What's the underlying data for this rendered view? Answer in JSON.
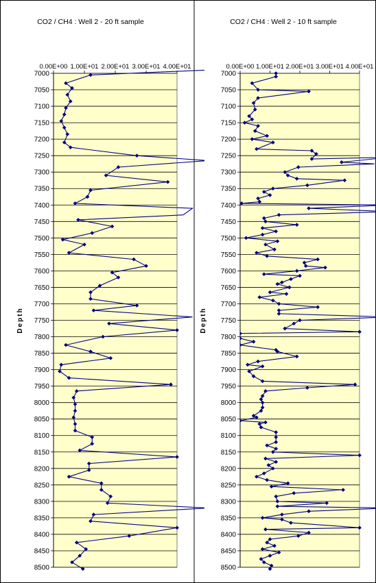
{
  "chart_data": [
    {
      "type": "line",
      "title": "CO2 / CH4 : Well 2 - 20  ft sample",
      "ylabel": "Depth",
      "xlabel": "",
      "xlim": [
        0,
        40
      ],
      "ylim": [
        7000,
        8500
      ],
      "x_ticks": [
        "0.00E+00",
        "1.00E+01",
        "2.00E+01",
        "3.00E+01",
        "4.00E+01"
      ],
      "y_ticks": [
        "7000",
        "7050",
        "7100",
        "7150",
        "7200",
        "7250",
        "7300",
        "7350",
        "7400",
        "7450",
        "7500",
        "7550",
        "7600",
        "7650",
        "7700",
        "7750",
        "7800",
        "7850",
        "7900",
        "7950",
        "8000",
        "8050",
        "8100",
        "8150",
        "8200",
        "8250",
        "8300",
        "8350",
        "8400",
        "8450",
        "8500"
      ],
      "plot_background": "#ffffcc",
      "line_color": "#000080",
      "grid": "horizontal",
      "series": [
        {
          "points": [
            {
              "x": 50,
              "y": 6990
            },
            {
              "x": 12,
              "y": 7005
            },
            {
              "x": 4,
              "y": 7030
            },
            {
              "x": 6,
              "y": 7045
            },
            {
              "x": 4.5,
              "y": 7065
            },
            {
              "x": 5.5,
              "y": 7085
            },
            {
              "x": 4,
              "y": 7105
            },
            {
              "x": 3.5,
              "y": 7125
            },
            {
              "x": 2.5,
              "y": 7145
            },
            {
              "x": 3.5,
              "y": 7165
            },
            {
              "x": 4.5,
              "y": 7185
            },
            {
              "x": 3.5,
              "y": 7210
            },
            {
              "x": 5.5,
              "y": 7225
            },
            {
              "x": 27,
              "y": 7250
            },
            {
              "x": 55,
              "y": 7265
            },
            {
              "x": 21,
              "y": 7285
            },
            {
              "x": 17,
              "y": 7310
            },
            {
              "x": 37,
              "y": 7330
            },
            {
              "x": 12,
              "y": 7355
            },
            {
              "x": 11,
              "y": 7375
            },
            {
              "x": 7,
              "y": 7395
            },
            {
              "x": 45,
              "y": 7410
            },
            {
              "x": 42,
              "y": 7430
            },
            {
              "x": 8,
              "y": 7445
            },
            {
              "x": 19,
              "y": 7465
            },
            {
              "x": 12.5,
              "y": 7485
            },
            {
              "x": 3,
              "y": 7505
            },
            {
              "x": 10,
              "y": 7520
            },
            {
              "x": 5,
              "y": 7545
            },
            {
              "x": 26,
              "y": 7565
            },
            {
              "x": 30,
              "y": 7585
            },
            {
              "x": 19,
              "y": 7605
            },
            {
              "x": 21,
              "y": 7620
            },
            {
              "x": 15,
              "y": 7645
            },
            {
              "x": 12,
              "y": 7665
            },
            {
              "x": 12,
              "y": 7685
            },
            {
              "x": 27,
              "y": 7705
            },
            {
              "x": 13,
              "y": 7720
            },
            {
              "x": 45,
              "y": 7740
            },
            {
              "x": 18,
              "y": 7760
            },
            {
              "x": 40,
              "y": 7780
            },
            {
              "x": 16,
              "y": 7800
            },
            {
              "x": 4,
              "y": 7825
            },
            {
              "x": 12,
              "y": 7845
            },
            {
              "x": 18.5,
              "y": 7865
            },
            {
              "x": 2.5,
              "y": 7885
            },
            {
              "x": 2,
              "y": 7905
            },
            {
              "x": 5,
              "y": 7925
            },
            {
              "x": 38,
              "y": 7945
            },
            {
              "x": 7.5,
              "y": 7965
            },
            {
              "x": 6.5,
              "y": 7985
            },
            {
              "x": 7,
              "y": 8005
            },
            {
              "x": 7,
              "y": 8025
            },
            {
              "x": 6.5,
              "y": 8045
            },
            {
              "x": 7,
              "y": 8065
            },
            {
              "x": 7,
              "y": 8085
            },
            {
              "x": 12.5,
              "y": 8105
            },
            {
              "x": 12.5,
              "y": 8125
            },
            {
              "x": 8.5,
              "y": 8145
            },
            {
              "x": 40,
              "y": 8165
            },
            {
              "x": 11.5,
              "y": 8185
            },
            {
              "x": 11.5,
              "y": 8205
            },
            {
              "x": 5,
              "y": 8225
            },
            {
              "x": 15.5,
              "y": 8245
            },
            {
              "x": 15.5,
              "y": 8265
            },
            {
              "x": 18.5,
              "y": 8285
            },
            {
              "x": 17.5,
              "y": 8305
            },
            {
              "x": 55,
              "y": 8320
            },
            {
              "x": 13,
              "y": 8340
            },
            {
              "x": 12,
              "y": 8360
            },
            {
              "x": 40,
              "y": 8380
            },
            {
              "x": 24.5,
              "y": 8405
            },
            {
              "x": 7.5,
              "y": 8425
            },
            {
              "x": 10.5,
              "y": 8445
            },
            {
              "x": 8.5,
              "y": 8465
            },
            {
              "x": 6,
              "y": 8485
            },
            {
              "x": 9.5,
              "y": 8505
            }
          ]
        }
      ]
    },
    {
      "type": "line",
      "title": "CO2 / CH4 : Well 2 - 10  ft sample",
      "ylabel": "Depth",
      "xlabel": "",
      "xlim": [
        0,
        40
      ],
      "ylim": [
        7000,
        8500
      ],
      "x_ticks": [
        "0.00E+00",
        "1.00E+01",
        "2.00E+01",
        "3.00E+01",
        "4.00E+01"
      ],
      "y_ticks": [
        "7000",
        "7050",
        "7100",
        "7150",
        "7200",
        "7250",
        "7300",
        "7350",
        "7400",
        "7450",
        "7500",
        "7550",
        "7600",
        "7650",
        "7700",
        "7750",
        "7800",
        "7850",
        "7900",
        "7950",
        "8000",
        "8050",
        "8100",
        "8150",
        "8200",
        "8250",
        "8300",
        "8350",
        "8400",
        "8450",
        "8500"
      ],
      "plot_background": "#ffffcc",
      "line_color": "#000080",
      "grid": "horizontal",
      "series": [
        {
          "points": [
            {
              "x": 12,
              "y": 7000
            },
            {
              "x": 12,
              "y": 7010
            },
            {
              "x": 4,
              "y": 7030
            },
            {
              "x": 6,
              "y": 7050
            },
            {
              "x": 23,
              "y": 7055
            },
            {
              "x": 6,
              "y": 7075
            },
            {
              "x": 4.5,
              "y": 7090
            },
            {
              "x": 5,
              "y": 7110
            },
            {
              "x": 3,
              "y": 7130
            },
            {
              "x": 4,
              "y": 7140
            },
            {
              "x": 1.5,
              "y": 7150
            },
            {
              "x": 6,
              "y": 7160
            },
            {
              "x": 5,
              "y": 7175
            },
            {
              "x": 9,
              "y": 7190
            },
            {
              "x": 4,
              "y": 7200
            },
            {
              "x": 11,
              "y": 7210
            },
            {
              "x": 5.5,
              "y": 7230
            },
            {
              "x": 24,
              "y": 7235
            },
            {
              "x": 25.5,
              "y": 7245
            },
            {
              "x": 24,
              "y": 7260
            },
            {
              "x": 50,
              "y": 7255
            },
            {
              "x": 34,
              "y": 7270
            },
            {
              "x": 45,
              "y": 7275
            },
            {
              "x": 19.5,
              "y": 7285
            },
            {
              "x": 15,
              "y": 7300
            },
            {
              "x": 16,
              "y": 7310
            },
            {
              "x": 19,
              "y": 7320
            },
            {
              "x": 35,
              "y": 7325
            },
            {
              "x": 22.5,
              "y": 7340
            },
            {
              "x": 11,
              "y": 7350
            },
            {
              "x": 8,
              "y": 7360
            },
            {
              "x": 10,
              "y": 7370
            },
            {
              "x": 6,
              "y": 7380
            },
            {
              "x": 6.5,
              "y": 7390
            },
            {
              "x": 0.5,
              "y": 7395
            },
            {
              "x": 50,
              "y": 7400
            },
            {
              "x": 23,
              "y": 7410
            },
            {
              "x": 50,
              "y": 7420
            },
            {
              "x": 13,
              "y": 7430
            },
            {
              "x": 8,
              "y": 7440
            },
            {
              "x": 8.5,
              "y": 7450
            },
            {
              "x": 19,
              "y": 7460
            },
            {
              "x": 7.5,
              "y": 7470
            },
            {
              "x": 12,
              "y": 7480
            },
            {
              "x": 7.5,
              "y": 7490
            },
            {
              "x": 2,
              "y": 7500
            },
            {
              "x": 12.5,
              "y": 7510
            },
            {
              "x": 8.5,
              "y": 7520
            },
            {
              "x": 11.5,
              "y": 7535
            },
            {
              "x": 5.5,
              "y": 7545
            },
            {
              "x": 9,
              "y": 7555
            },
            {
              "x": 26,
              "y": 7565
            },
            {
              "x": 21.5,
              "y": 7575
            },
            {
              "x": 22,
              "y": 7585
            },
            {
              "x": 28.5,
              "y": 7590
            },
            {
              "x": 19,
              "y": 7600
            },
            {
              "x": 8,
              "y": 7610
            },
            {
              "x": 20,
              "y": 7615
            },
            {
              "x": 17,
              "y": 7625
            },
            {
              "x": 14,
              "y": 7635
            },
            {
              "x": 12.5,
              "y": 7640
            },
            {
              "x": 16.5,
              "y": 7650
            },
            {
              "x": 10,
              "y": 7665
            },
            {
              "x": 15.5,
              "y": 7670
            },
            {
              "x": 6.5,
              "y": 7680
            },
            {
              "x": 11,
              "y": 7690
            },
            {
              "x": 13,
              "y": 7700
            },
            {
              "x": 26,
              "y": 7710
            },
            {
              "x": 13,
              "y": 7720
            },
            {
              "x": 13,
              "y": 7730
            },
            {
              "x": 50,
              "y": 7740
            },
            {
              "x": 20,
              "y": 7750
            },
            {
              "x": 18,
              "y": 7760
            },
            {
              "x": 15,
              "y": 7775
            },
            {
              "x": 40,
              "y": 7785
            },
            {
              "x": 0,
              "y": 7790
            },
            {
              "x": 0,
              "y": 7805
            },
            {
              "x": 4.5,
              "y": 7815
            },
            {
              "x": 0,
              "y": 7825
            },
            {
              "x": 12,
              "y": 7840
            },
            {
              "x": 12.5,
              "y": 7845
            },
            {
              "x": 19,
              "y": 7860
            },
            {
              "x": 6,
              "y": 7875
            },
            {
              "x": 2.5,
              "y": 7885
            },
            {
              "x": 7.5,
              "y": 7890
            },
            {
              "x": 3,
              "y": 7905
            },
            {
              "x": 4.5,
              "y": 7920
            },
            {
              "x": 7.5,
              "y": 7935
            },
            {
              "x": 38.5,
              "y": 7945
            },
            {
              "x": 22.5,
              "y": 7955
            },
            {
              "x": 8.5,
              "y": 7965
            },
            {
              "x": 7.5,
              "y": 7980
            },
            {
              "x": 7,
              "y": 7990
            },
            {
              "x": 7.5,
              "y": 8000
            },
            {
              "x": 7.5,
              "y": 8015
            },
            {
              "x": 7,
              "y": 8025
            },
            {
              "x": 4.5,
              "y": 8040
            },
            {
              "x": 5.5,
              "y": 8045
            },
            {
              "x": 0,
              "y": 8055
            },
            {
              "x": 8.5,
              "y": 8060
            },
            {
              "x": 6.5,
              "y": 8065
            },
            {
              "x": 7,
              "y": 8075
            },
            {
              "x": 12,
              "y": 8090
            },
            {
              "x": 12,
              "y": 8105
            },
            {
              "x": 12,
              "y": 8120
            },
            {
              "x": 9,
              "y": 8130
            },
            {
              "x": 12,
              "y": 8140
            },
            {
              "x": 11,
              "y": 8150
            },
            {
              "x": 40,
              "y": 8160
            },
            {
              "x": 8.5,
              "y": 8170
            },
            {
              "x": 12,
              "y": 8180
            },
            {
              "x": 9.5,
              "y": 8190
            },
            {
              "x": 11,
              "y": 8200
            },
            {
              "x": 8,
              "y": 8215
            },
            {
              "x": 5.5,
              "y": 8225
            },
            {
              "x": 9,
              "y": 8235
            },
            {
              "x": 16,
              "y": 8245
            },
            {
              "x": 10.5,
              "y": 8255
            },
            {
              "x": 34.5,
              "y": 8265
            },
            {
              "x": 18,
              "y": 8275
            },
            {
              "x": 12,
              "y": 8285
            },
            {
              "x": 12.5,
              "y": 8300
            },
            {
              "x": 29,
              "y": 8305
            },
            {
              "x": 12.5,
              "y": 8315
            },
            {
              "x": 50,
              "y": 8320
            },
            {
              "x": 23,
              "y": 8330
            },
            {
              "x": 14,
              "y": 8340
            },
            {
              "x": 7.5,
              "y": 8350
            },
            {
              "x": 14,
              "y": 8355
            },
            {
              "x": 17,
              "y": 8365
            },
            {
              "x": 40,
              "y": 8380
            },
            {
              "x": 8.5,
              "y": 8385
            },
            {
              "x": 23,
              "y": 8395
            },
            {
              "x": 19.5,
              "y": 8405
            },
            {
              "x": 10,
              "y": 8415
            },
            {
              "x": 9,
              "y": 8425
            },
            {
              "x": 11.5,
              "y": 8435
            },
            {
              "x": 7.5,
              "y": 8445
            },
            {
              "x": 13,
              "y": 8455
            },
            {
              "x": 10,
              "y": 8465
            },
            {
              "x": 7,
              "y": 8475
            },
            {
              "x": 8,
              "y": 8485
            },
            {
              "x": 10.5,
              "y": 8495
            },
            {
              "x": 10,
              "y": 8505
            }
          ]
        }
      ]
    }
  ]
}
